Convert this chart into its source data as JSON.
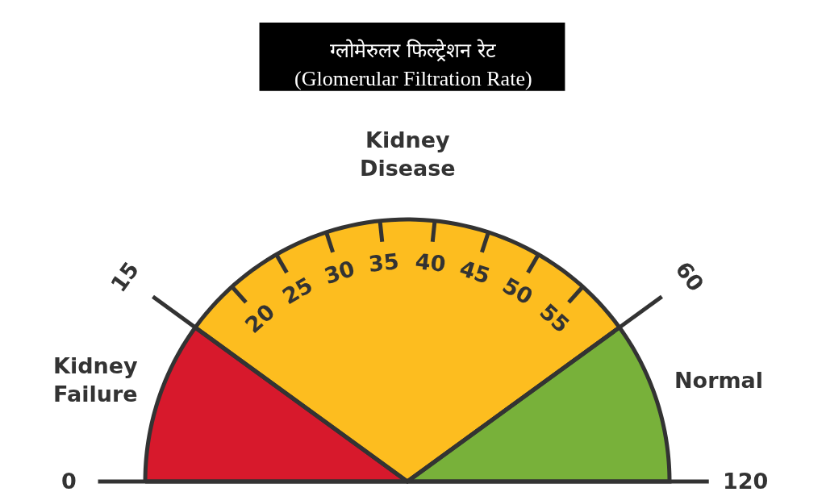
{
  "chart_data": {
    "type": "pie",
    "title": "ग्लोमेरुलर फिल्ट्रेशन रेट",
    "subtitle": "(Glomerular Filtration Rate)",
    "categories": [
      "Kidney Failure",
      "Kidney Disease",
      "Normal"
    ],
    "values": [
      20,
      60,
      20
    ],
    "colors": [
      "#d7192c",
      "#fdbd1f",
      "#78b13a"
    ],
    "annotations": [
      "0",
      "15",
      "20",
      "25",
      "30",
      "35",
      "40",
      "45",
      "50",
      "55",
      "60",
      "120"
    ],
    "legend": false
  }
}
